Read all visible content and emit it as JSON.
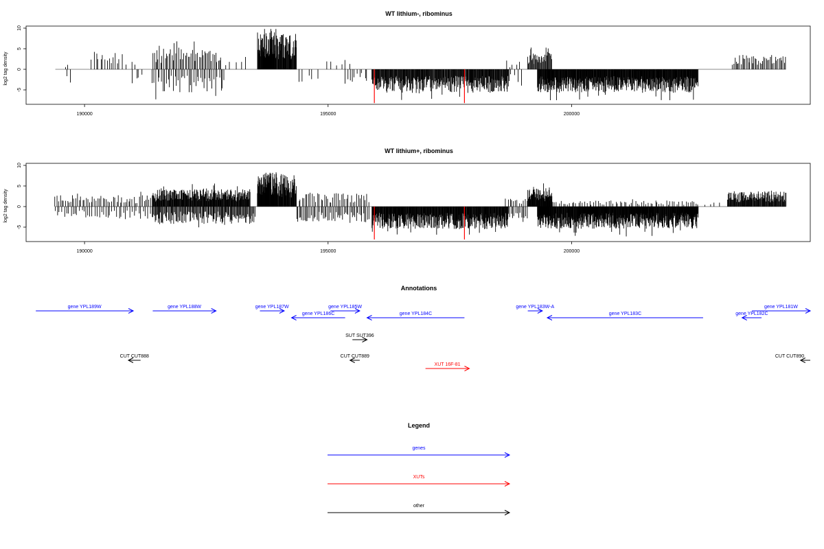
{
  "chart_data": [
    {
      "type": "bar",
      "title": "WT lithium-, ribominus",
      "ylabel": "log2 tag density",
      "xlabel": "",
      "xlim": [
        188800,
        204900
      ],
      "ylim": [
        -8.5,
        10.5
      ],
      "y_ticks": [
        -5,
        0,
        5,
        10
      ],
      "x_ticks": [
        190000,
        195000,
        200000
      ],
      "x_tick_labels": [
        "190000",
        "195000",
        "200000"
      ],
      "baseline_range": [
        189400,
        204400
      ],
      "highlight_color": "#ff0000",
      "highlights": [
        {
          "x": 195950,
          "y": -8.2
        },
        {
          "x": 197800,
          "y": -8.2
        }
      ],
      "regions": [
        {
          "range": [
            189600,
            189700
          ],
          "spacing": 60,
          "amplitude": 1.0,
          "sign": 1
        },
        {
          "range": [
            189650,
            189750
          ],
          "spacing": 60,
          "amplitude": -3.3,
          "sign": -1
        },
        {
          "range": [
            190150,
            190700
          ],
          "spacing": 45,
          "amplitude": 3.2,
          "sign": 1
        },
        {
          "range": [
            190700,
            191100
          ],
          "spacing": 90,
          "amplitude": 3.0,
          "sign": 1
        },
        {
          "range": [
            191000,
            191200
          ],
          "spacing": 60,
          "amplitude": -3.2,
          "sign": -1
        },
        {
          "range": [
            191400,
            192800
          ],
          "spacing": 28,
          "amplitude": 4.2,
          "sign": 1
        },
        {
          "range": [
            191400,
            192900
          ],
          "spacing": 35,
          "amplitude": -4.5,
          "sign": -1
        },
        {
          "range": [
            192900,
            193400
          ],
          "spacing": 110,
          "amplitude": 2.5,
          "sign": 1
        },
        {
          "range": [
            193550,
            193900
          ],
          "spacing": 7,
          "amplitude": 7.5,
          "sign": 1
        },
        {
          "range": [
            193900,
            194350
          ],
          "spacing": 9,
          "amplitude": 7.0,
          "sign": 1
        },
        {
          "range": [
            194400,
            194800
          ],
          "spacing": 100,
          "amplitude": -2.5,
          "sign": -1
        },
        {
          "range": [
            195000,
            195500
          ],
          "spacing": 90,
          "amplitude": 2.4,
          "sign": 1
        },
        {
          "range": [
            195350,
            195800
          ],
          "spacing": 50,
          "amplitude": -2.6,
          "sign": -1
        },
        {
          "range": [
            195900,
            198700
          ],
          "spacing": 10,
          "amplitude": -4.6,
          "sign": -1
        },
        {
          "range": [
            198700,
            199000
          ],
          "spacing": 70,
          "amplitude": -2.5,
          "sign": -1
        },
        {
          "range": [
            198650,
            198950
          ],
          "spacing": 70,
          "amplitude": 1.4,
          "sign": 1
        },
        {
          "range": [
            199100,
            199600
          ],
          "spacing": 14,
          "amplitude": 3.6,
          "sign": 1
        },
        {
          "range": [
            199300,
            202600
          ],
          "spacing": 8,
          "amplitude": -4.6,
          "sign": -1
        },
        {
          "range": [
            203300,
            204400
          ],
          "spacing": 26,
          "amplitude": 2.8,
          "sign": 1
        }
      ]
    },
    {
      "type": "bar",
      "title": "WT lithium+, ribominus",
      "ylabel": "log2 tag density",
      "xlabel": "",
      "xlim": [
        188800,
        204900
      ],
      "ylim": [
        -8.5,
        10.5
      ],
      "y_ticks": [
        -5,
        0,
        5,
        10
      ],
      "x_ticks": [
        190000,
        195000,
        200000
      ],
      "x_tick_labels": [
        "190000",
        "195000",
        "200000"
      ],
      "baseline_range": [
        189400,
        204400
      ],
      "highlight_color": "#ff0000",
      "highlights": [
        {
          "x": 195950,
          "y": -8.0
        },
        {
          "x": 197800,
          "y": -8.0
        }
      ],
      "regions": [
        {
          "range": [
            189400,
            191400
          ],
          "spacing": 35,
          "amplitude": 2.2,
          "sign": 1
        },
        {
          "range": [
            189400,
            191400
          ],
          "spacing": 45,
          "amplitude": -2.4,
          "sign": -1
        },
        {
          "range": [
            191400,
            193400
          ],
          "spacing": 9,
          "amplitude": 3.4,
          "sign": 1
        },
        {
          "range": [
            191400,
            193500
          ],
          "spacing": 16,
          "amplitude": -3.4,
          "sign": -1
        },
        {
          "range": [
            193550,
            193950
          ],
          "spacing": 6,
          "amplitude": 6.8,
          "sign": 1
        },
        {
          "range": [
            193950,
            194350
          ],
          "spacing": 8,
          "amplitude": 6.3,
          "sign": 1
        },
        {
          "range": [
            194350,
            195850
          ],
          "spacing": 28,
          "amplitude": -3.0,
          "sign": -1
        },
        {
          "range": [
            194400,
            195850
          ],
          "spacing": 35,
          "amplitude": 2.6,
          "sign": 1
        },
        {
          "range": [
            195900,
            198700
          ],
          "spacing": 8,
          "amplitude": -4.4,
          "sign": -1
        },
        {
          "range": [
            198700,
            199100
          ],
          "spacing": 30,
          "amplitude": -2.4,
          "sign": -1
        },
        {
          "range": [
            198650,
            199100
          ],
          "spacing": 40,
          "amplitude": 1.6,
          "sign": 1
        },
        {
          "range": [
            199100,
            199600
          ],
          "spacing": 7,
          "amplitude": 3.7,
          "sign": 1
        },
        {
          "range": [
            199300,
            202600
          ],
          "spacing": 7,
          "amplitude": -4.3,
          "sign": -1
        },
        {
          "range": [
            199600,
            202600
          ],
          "spacing": 45,
          "amplitude": 1.2,
          "sign": 1
        },
        {
          "range": [
            202600,
            203200
          ],
          "spacing": 120,
          "amplitude": 0.8,
          "sign": 1
        },
        {
          "range": [
            203200,
            204400
          ],
          "spacing": 10,
          "amplitude": 3.0,
          "sign": 1
        }
      ]
    }
  ],
  "annotations": {
    "title": "Annotations",
    "colors": {
      "gene": "#0000ff",
      "xut": "#ff0000",
      "other": "#000000"
    },
    "tracks": [
      {
        "label": "gene YPL189W",
        "kind": "gene",
        "start": 189000,
        "end": 191000,
        "dir": "right",
        "row": 0
      },
      {
        "label": "gene YPL188W",
        "kind": "gene",
        "start": 191400,
        "end": 192700,
        "dir": "right",
        "row": 0
      },
      {
        "label": "gene YPL187W",
        "kind": "gene",
        "start": 193600,
        "end": 194100,
        "dir": "right",
        "row": 0
      },
      {
        "label": "gene YPL186C",
        "kind": "gene",
        "start": 194250,
        "end": 195350,
        "dir": "left",
        "row": 1
      },
      {
        "label": "gene YPL185W",
        "kind": "gene",
        "start": 195050,
        "end": 195650,
        "dir": "right",
        "row": 0
      },
      {
        "label": "gene YPL184C",
        "kind": "gene",
        "start": 195800,
        "end": 197800,
        "dir": "left",
        "row": 1
      },
      {
        "label": "gene YPL183W-A",
        "kind": "gene",
        "start": 199100,
        "end": 199400,
        "dir": "right",
        "row": 0
      },
      {
        "label": "gene YPL183C",
        "kind": "gene",
        "start": 199500,
        "end": 202700,
        "dir": "left",
        "row": 1
      },
      {
        "label": "gene YPL182C",
        "kind": "gene",
        "start": 203500,
        "end": 203900,
        "dir": "left",
        "row": 1
      },
      {
        "label": "gene YPL181W",
        "kind": "gene",
        "start": 203700,
        "end": 205000,
        "dir": "right",
        "row": 0
      },
      {
        "label": "SUT SUT396",
        "kind": "other",
        "start": 195500,
        "end": 195800,
        "dir": "right",
        "row": 2
      },
      {
        "label": "CUT CUT888",
        "kind": "other",
        "start": 190900,
        "end": 191150,
        "dir": "left",
        "row": 3
      },
      {
        "label": "CUT CUT889",
        "kind": "other",
        "start": 195450,
        "end": 195650,
        "dir": "left",
        "row": 3
      },
      {
        "label": "XUT 16F-81",
        "kind": "xut",
        "start": 197000,
        "end": 197900,
        "dir": "right",
        "row": 4
      },
      {
        "label": "CUT CUT890",
        "kind": "other",
        "start": 204700,
        "end": 205000,
        "dir": "left",
        "row": 3
      }
    ]
  },
  "legend": {
    "title": "Legend",
    "items": [
      {
        "label": "genes",
        "color": "#0000ff"
      },
      {
        "label": "XUTs",
        "color": "#ff0000"
      },
      {
        "label": "other",
        "color": "#000000"
      }
    ]
  }
}
